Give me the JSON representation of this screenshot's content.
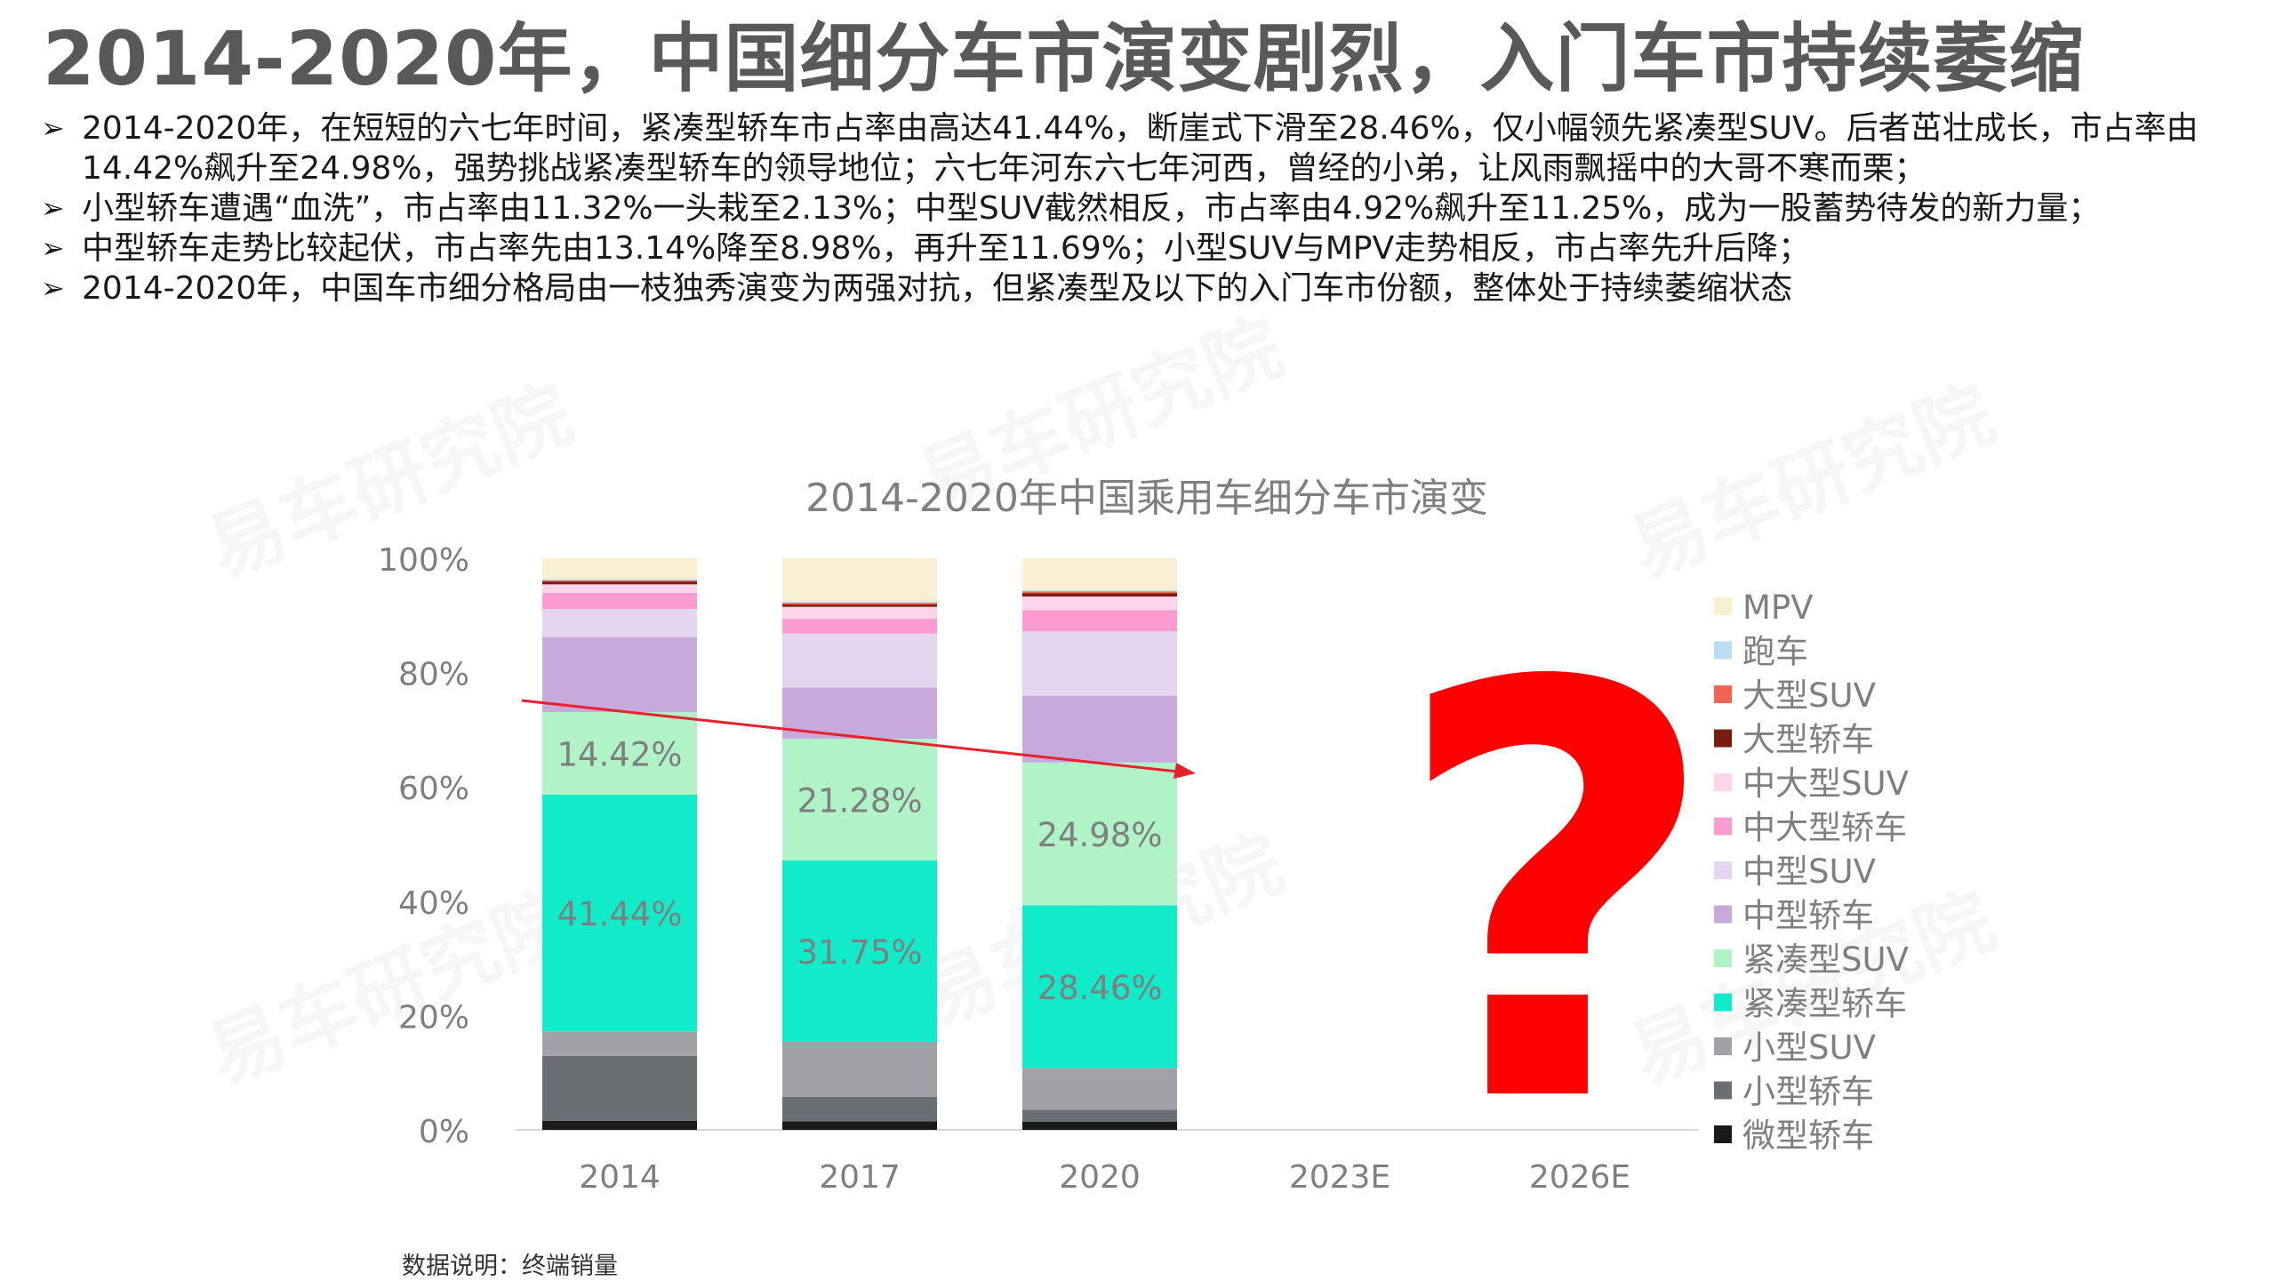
{
  "title": "2014-2020年，中国细分车市演变剧烈，入门车市持续萎缩",
  "bullets": [
    "2014-2020年，在短短的六七年时间，紧凑型轿车市占率由高达41.44%，断崖式下滑至28.46%，仅小幅领先紧凑型SUV。后者茁壮成长，市占率由14.42%飙升至24.98%，强势挑战紧凑型轿车的领导地位；六七年河东六七年河西，曾经的小弟，让风雨飘摇中的大哥不寒而栗；",
    "小型轿车遭遇“血洗”，市占率由11.32%一头栽至2.13%；中型SUV截然相反，市占率由4.92%飙升至11.25%，成为一股蓄势待发的新力量；",
    "中型轿车走势比较起伏，市占率先由13.14%降至8.98%，再升至11.69%；小型SUV与MPV走势相反，市占率先升后降；",
    "2014-2020年，中国车市细分格局由一枝独秀演变为两强对抗，但紧凑型及以下的入门车市份额，整体处于持续萎缩状态"
  ],
  "bullet_marker": "➢",
  "watermark_text": "易车研究院",
  "footnote": "数据说明：终端销量",
  "question_mark": "?",
  "colors": {
    "question": "#ff0000",
    "trend": "#e8212b",
    "axis_text": "#7f7f7f"
  },
  "chart_data": {
    "type": "bar",
    "stacked": true,
    "title": "2014-2020年中国乘用车细分车市演变",
    "categories": [
      "2014",
      "2017",
      "2020",
      "2023E",
      "2026E"
    ],
    "yticks": [
      "0%",
      "20%",
      "40%",
      "60%",
      "80%",
      "100%"
    ],
    "ylim": [
      0,
      100
    ],
    "grid": false,
    "legend_position": "right",
    "series": [
      {
        "name": "微型轿车",
        "color": "#1a1a1a",
        "values": [
          1.6,
          1.5,
          1.4,
          null,
          null
        ]
      },
      {
        "name": "小型轿车",
        "color": "#6b6f74",
        "values": [
          11.32,
          4.3,
          2.13,
          null,
          null
        ]
      },
      {
        "name": "小型SUV",
        "color": "#a0a2a7",
        "values": [
          4.3,
          9.6,
          7.3,
          null,
          null
        ]
      },
      {
        "name": "紧凑型轿车",
        "color": "#12ebc9",
        "values": [
          41.44,
          31.75,
          28.46,
          null,
          null
        ],
        "label_values": [
          "41.44%",
          "31.75%",
          "28.46%"
        ]
      },
      {
        "name": "紧凑型SUV",
        "color": "#b0f3c7",
        "values": [
          14.42,
          21.28,
          24.98,
          null,
          null
        ],
        "label_values": [
          "14.42%",
          "21.28%",
          "24.98%"
        ]
      },
      {
        "name": "中型轿车",
        "color": "#c7a9dc",
        "values": [
          13.14,
          8.98,
          11.69,
          null,
          null
        ]
      },
      {
        "name": "中型SUV",
        "color": "#e5d5ef",
        "values": [
          4.92,
          9.4,
          11.25,
          null,
          null
        ]
      },
      {
        "name": "中大型轿车",
        "color": "#fc9bd0",
        "values": [
          2.8,
          2.6,
          3.7,
          null,
          null
        ]
      },
      {
        "name": "中大型SUV",
        "color": "#fdd5ea",
        "values": [
          1.5,
          2.1,
          2.4,
          null,
          null
        ]
      },
      {
        "name": "大型轿车",
        "color": "#7b1c10",
        "values": [
          0.5,
          0.4,
          0.6,
          null,
          null
        ]
      },
      {
        "name": "大型SUV",
        "color": "#f26553",
        "values": [
          0.2,
          0.3,
          0.3,
          null,
          null
        ]
      },
      {
        "name": "跑车",
        "color": "#bcdcf4",
        "values": [
          0.2,
          0.2,
          0.2,
          null,
          null
        ]
      },
      {
        "name": "MPV",
        "color": "#f9f0d4",
        "values": [
          3.66,
          7.58,
          5.59,
          null,
          null
        ]
      }
    ]
  }
}
